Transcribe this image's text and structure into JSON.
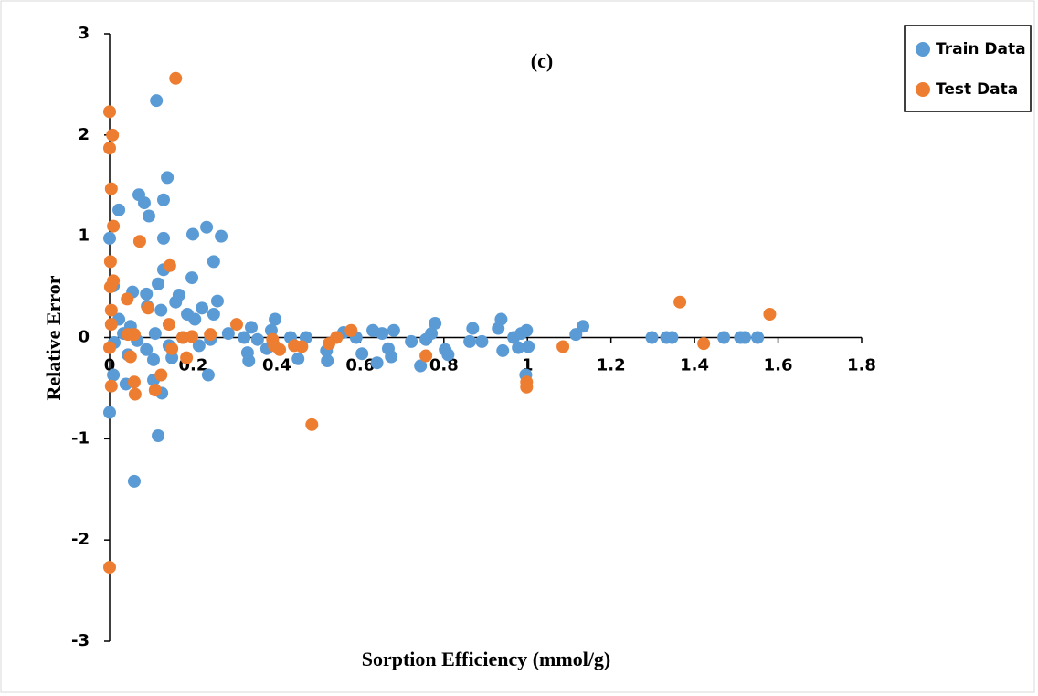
{
  "chart_data": {
    "type": "scatter",
    "title": "(c)",
    "x_label": "Sorption Efficiency (mmol/g)",
    "y_label": "Relative Error",
    "xlim": [
      0,
      1.8
    ],
    "xticks": [
      0,
      0.2,
      0.4,
      0.6,
      0.8,
      1,
      1.2,
      1.4,
      1.6,
      1.8
    ],
    "ylim": [
      -3,
      3
    ],
    "yticks": [
      -3,
      -2,
      -1,
      0,
      1,
      2,
      3
    ],
    "legend": "top-right",
    "series": [
      {
        "name": "Train Data",
        "color": "#5b9bd5",
        "x": [
          0.112,
          0.138,
          0.07,
          0.129,
          0.083,
          0.022,
          0.094,
          0.232,
          0.199,
          0.267,
          0.129,
          0,
          0.249,
          0.129,
          0.197,
          0.116,
          0.055,
          0.088,
          0.166,
          0.258,
          0.158,
          0.009,
          0.09,
          0.123,
          0.186,
          0.249,
          0.221,
          0.204,
          0.396,
          0.339,
          0.05,
          0.022,
          0.284,
          0.322,
          0.354,
          0.376,
          0.33,
          0.333,
          0.387,
          0.433,
          0.451,
          0.47,
          0.519,
          0.521,
          0.56,
          0.59,
          0.604,
          0.63,
          0.64,
          0.652,
          0.667,
          0.674,
          0.68,
          0.722,
          0.744,
          0.757,
          0.77,
          0.779,
          0.803,
          0.81,
          0.862,
          0.869,
          0.891,
          0.93,
          0.937,
          0.941,
          0.967,
          0.978,
          0.985,
          0.998,
          0.996,
          1.002,
          1.116,
          1.133,
          1.298,
          1.333,
          1.346,
          1.47,
          1.51,
          1.52,
          1.551,
          0,
          0.009,
          0.059,
          0.116,
          0.105,
          0.125,
          0.039,
          0.236,
          0.149,
          0.105,
          0.011,
          0.033,
          0.066,
          0.088,
          0.142,
          0.175,
          0.214,
          0.241,
          0.044,
          0.109
        ],
        "values": [
          2.34,
          1.58,
          1.41,
          1.36,
          1.33,
          1.26,
          1.2,
          1.09,
          1.02,
          1,
          0.98,
          0.98,
          0.75,
          0.67,
          0.59,
          0.53,
          0.45,
          0.43,
          0.42,
          0.36,
          0.35,
          0.51,
          0.31,
          0.27,
          0.23,
          0.23,
          0.29,
          0.18,
          0.18,
          0.1,
          0.11,
          0.18,
          0.04,
          0,
          -0.02,
          -0.11,
          -0.15,
          -0.23,
          0.07,
          0,
          -0.21,
          0,
          -0.13,
          -0.23,
          0.05,
          0,
          -0.16,
          0.07,
          -0.25,
          0.04,
          -0.11,
          -0.19,
          0.07,
          -0.04,
          -0.28,
          -0.02,
          0.04,
          0.14,
          -0.12,
          -0.17,
          -0.04,
          0.09,
          -0.04,
          0.09,
          0.18,
          -0.13,
          0,
          -0.1,
          0.04,
          0.07,
          -0.37,
          -0.09,
          0.03,
          0.11,
          0,
          0,
          0,
          0,
          0,
          0,
          0,
          -0.74,
          -0.37,
          -1.42,
          -0.97,
          -0.42,
          -0.55,
          -0.46,
          -0.37,
          -0.2,
          -0.22,
          -0.05,
          0.04,
          -0.03,
          -0.12,
          -0.08,
          0,
          -0.08,
          -0.02,
          -0.17,
          0.04
        ]
      },
      {
        "name": "Test Data",
        "color": "#ed7d31",
        "x": [
          0.158,
          0,
          0.007,
          0,
          0.004,
          0.009,
          0.072,
          0.002,
          0.144,
          0.009,
          0.002,
          1.365,
          1.58,
          0.042,
          0.092,
          0.304,
          0.142,
          0.578,
          0.241,
          0.059,
          0.044,
          0.004,
          0.004,
          0.543,
          0.175,
          0.197,
          0.39,
          0.394,
          0.407,
          0.442,
          0.46,
          0.525,
          1.085,
          1.422,
          0.149,
          0.05,
          0.757,
          0.184,
          0.123,
          0.059,
          0.004,
          0.998,
          0.998,
          0.061,
          0.109,
          0.484,
          0,
          0
        ],
        "values": [
          2.56,
          2.23,
          2,
          1.87,
          1.47,
          1.1,
          0.95,
          0.75,
          0.71,
          0.56,
          0.5,
          0.35,
          0.23,
          0.38,
          0.29,
          0.13,
          0.13,
          0.07,
          0.03,
          0.03,
          0.03,
          0.27,
          0.13,
          0,
          0,
          0.01,
          -0.02,
          -0.08,
          -0.12,
          -0.08,
          -0.09,
          -0.06,
          -0.09,
          -0.06,
          -0.11,
          -0.19,
          -0.18,
          -0.2,
          -0.37,
          -0.44,
          -0.48,
          -0.44,
          -0.49,
          -0.56,
          -0.52,
          -0.86,
          -2.27,
          -0.1
        ]
      }
    ]
  }
}
